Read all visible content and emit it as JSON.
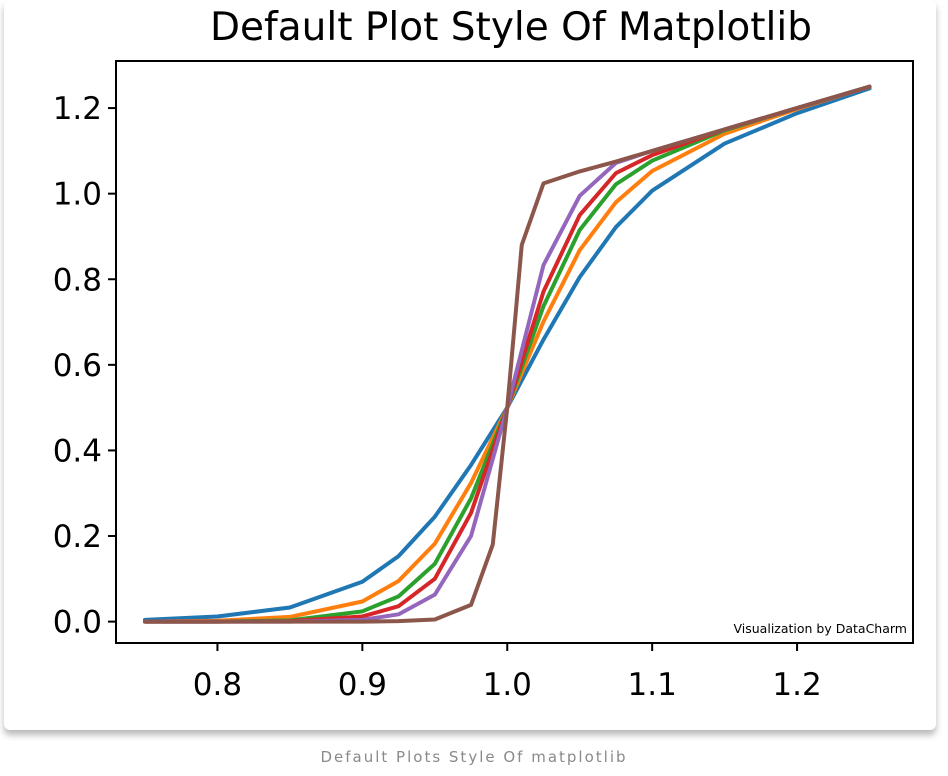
{
  "chart_data": {
    "type": "line",
    "title": "Default Plot Style Of Matplotlib",
    "xlabel": "",
    "ylabel": "",
    "xlim": [
      0.73,
      1.28
    ],
    "ylim": [
      -0.05,
      1.31
    ],
    "x_ticks": [
      0.8,
      0.9,
      1.0,
      1.1,
      1.2
    ],
    "x_tick_labels": [
      "0.8",
      "0.9",
      "1.0",
      "1.1",
      "1.2"
    ],
    "y_ticks": [
      0.0,
      0.2,
      0.4,
      0.6,
      0.8,
      1.0,
      1.2
    ],
    "y_tick_labels": [
      "0.0",
      "0.2",
      "0.4",
      "0.6",
      "0.8",
      "1.0",
      "1.2"
    ],
    "grid": false,
    "legend": "none",
    "annotation": "Visualization by DataCharm",
    "series": [
      {
        "color": "#1f77b4",
        "x": [
          0.75,
          0.8,
          0.85,
          0.9,
          0.925,
          0.95,
          0.975,
          1.0,
          1.025,
          1.05,
          1.075,
          1.1,
          1.15,
          1.2,
          1.25
        ],
        "y": [
          0.004,
          0.012,
          0.033,
          0.093,
          0.153,
          0.245,
          0.366,
          0.5,
          0.659,
          0.805,
          0.922,
          1.007,
          1.117,
          1.188,
          1.246
        ]
      },
      {
        "color": "#ff7f0e",
        "x": [
          0.75,
          0.8,
          0.85,
          0.9,
          0.925,
          0.95,
          0.975,
          1.0,
          1.025,
          1.05,
          1.075,
          1.1,
          1.15,
          1.2,
          1.25
        ],
        "y": [
          0.0,
          0.002,
          0.011,
          0.047,
          0.095,
          0.182,
          0.324,
          0.5,
          0.701,
          0.868,
          0.98,
          1.053,
          1.14,
          1.198,
          1.25
        ]
      },
      {
        "color": "#2ca02c",
        "x": [
          0.75,
          0.8,
          0.85,
          0.9,
          0.925,
          0.95,
          0.975,
          1.0,
          1.025,
          1.05,
          1.075,
          1.1,
          1.15,
          1.2,
          1.25
        ],
        "y": [
          0.0,
          0.0,
          0.003,
          0.024,
          0.059,
          0.135,
          0.288,
          0.5,
          0.737,
          0.915,
          1.022,
          1.077,
          1.148,
          1.2,
          1.25
        ]
      },
      {
        "color": "#d62728",
        "x": [
          0.75,
          0.8,
          0.85,
          0.9,
          0.925,
          0.95,
          0.975,
          1.0,
          1.025,
          1.05,
          1.075,
          1.1,
          1.15,
          1.2,
          1.25
        ],
        "y": [
          0.0,
          0.0,
          0.001,
          0.012,
          0.036,
          0.1,
          0.254,
          0.5,
          0.771,
          0.95,
          1.048,
          1.09,
          1.15,
          1.2,
          1.25
        ]
      },
      {
        "color": "#9467bd",
        "x": [
          0.75,
          0.8,
          0.85,
          0.9,
          0.925,
          0.95,
          0.975,
          1.0,
          1.025,
          1.05,
          1.075,
          1.1,
          1.15,
          1.2,
          1.25
        ],
        "y": [
          0.0,
          0.0,
          0.0,
          0.004,
          0.017,
          0.063,
          0.2,
          0.5,
          0.833,
          0.995,
          1.072,
          1.1,
          1.15,
          1.2,
          1.25
        ]
      },
      {
        "color": "#8c564b",
        "x": [
          0.75,
          0.8,
          0.85,
          0.9,
          0.925,
          0.95,
          0.975,
          0.99,
          1.0,
          1.01,
          1.025,
          1.05,
          1.075,
          1.1,
          1.15,
          1.2,
          1.25
        ],
        "y": [
          0.0,
          0.0,
          0.0,
          0.0,
          0.001,
          0.005,
          0.039,
          0.18,
          0.5,
          0.88,
          1.024,
          1.052,
          1.075,
          1.1,
          1.15,
          1.2,
          1.25
        ]
      }
    ]
  },
  "caption": "Default Plots Style Of matplotlib"
}
